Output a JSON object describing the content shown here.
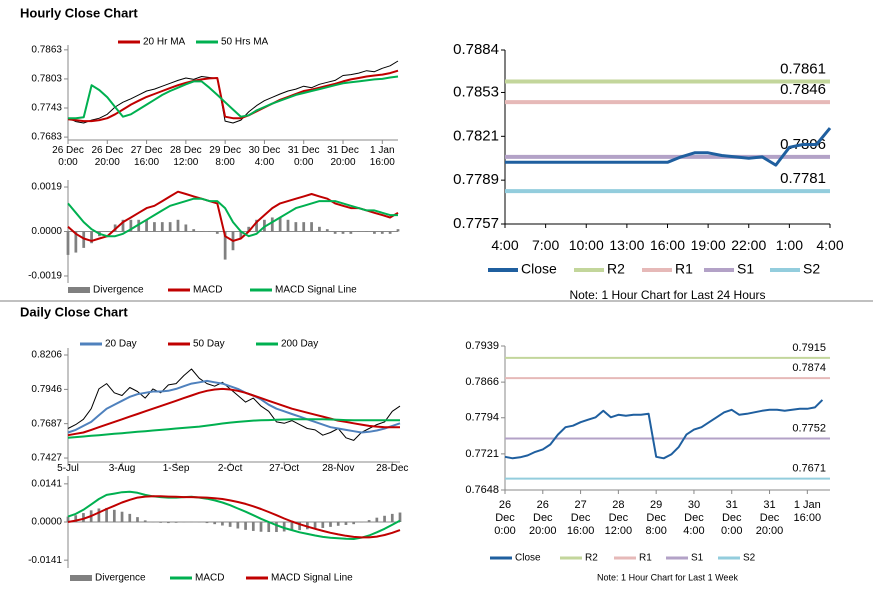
{
  "headings": [
    "Hourly Close Chart",
    "Daily Close Chart"
  ],
  "chart_data": [
    {
      "type": "line",
      "xlim": [
        0,
        42
      ],
      "xticks": [
        {
          "value": 0,
          "label": "26 Dec\n0:00"
        },
        {
          "value": 5,
          "label": "26 Dec\n20:00"
        },
        {
          "value": 10,
          "label": "27 Dec\n16:00"
        },
        {
          "value": 15,
          "label": "28 Dec\n12:00"
        },
        {
          "value": 20,
          "label": "29 Dec\n8:00"
        },
        {
          "value": 25,
          "label": "30 Dec\n4:00"
        },
        {
          "value": 30,
          "label": "31 Dec\n0:00"
        },
        {
          "value": 35,
          "label": "31 Dec\n20:00"
        },
        {
          "value": 40,
          "label": "1 Jan\n16:00"
        }
      ],
      "ylim": [
        0.7677,
        0.7873
      ],
      "yticks": [
        0.7683,
        0.7743,
        0.7803,
        0.7863
      ],
      "series": [
        {
          "color": "#000000",
          "values": [
            0.7722,
            0.7715,
            0.7712,
            0.7718,
            0.7722,
            0.773,
            0.7745,
            0.7755,
            0.7762,
            0.777,
            0.7778,
            0.7782,
            0.7788,
            0.7794,
            0.78,
            0.7805,
            0.7802,
            0.7808,
            0.7806,
            0.7804,
            0.7716,
            0.7712,
            0.7718,
            0.7735,
            0.7748,
            0.7758,
            0.7765,
            0.7772,
            0.7778,
            0.7782,
            0.7788,
            0.7785,
            0.7792,
            0.7796,
            0.78,
            0.781,
            0.7812,
            0.7815,
            0.782,
            0.7818,
            0.7825,
            0.783,
            0.784
          ]
        },
        {
          "name": "20 Hr MA",
          "color": "#c00000",
          "values": [
            0.772,
            0.7718,
            0.7716,
            0.7716,
            0.7718,
            0.7722,
            0.773,
            0.774,
            0.775,
            0.7758,
            0.7766,
            0.7772,
            0.7778,
            0.7784,
            0.779,
            0.7795,
            0.7799,
            0.7802,
            0.7804,
            0.7805,
            0.7725,
            0.7722,
            0.7722,
            0.7728,
            0.7736,
            0.7744,
            0.7752,
            0.776,
            0.7766,
            0.7772,
            0.7778,
            0.7781,
            0.7785,
            0.7789,
            0.7793,
            0.7798,
            0.7802,
            0.7805,
            0.7808,
            0.781,
            0.7812,
            0.7815,
            0.782
          ]
        },
        {
          "name": "50 Hrs MA",
          "color": "#00b050",
          "values": [
            0.7722,
            0.7722,
            0.7724,
            0.779,
            0.778,
            0.7765,
            0.7745,
            0.7725,
            0.773,
            0.774,
            0.775,
            0.776,
            0.777,
            0.7778,
            0.7785,
            0.7792,
            0.7798,
            0.7798,
            0.7785,
            0.777,
            0.7755,
            0.774,
            0.7725,
            0.7728,
            0.7738,
            0.7745,
            0.7752,
            0.7758,
            0.7764,
            0.777,
            0.7774,
            0.7778,
            0.7782,
            0.7786,
            0.779,
            0.7794,
            0.7796,
            0.7798,
            0.78,
            0.7802,
            0.7803,
            0.7806,
            0.7808
          ]
        }
      ]
    },
    {
      "type": "combo",
      "xlim": [
        0,
        42
      ],
      "ylim": [
        -0.0022,
        0.0022
      ],
      "yticks": [
        0.0019,
        {
          "value": 0,
          "label": "0.0000"
        },
        -0.0019
      ],
      "series": [
        {
          "name": "Divergence",
          "color": "#808080",
          "style": "bar",
          "values": [
            -0.001,
            -0.0009,
            -0.0007,
            -0.0005,
            -0.0002,
            0,
            0.0003,
            0.0005,
            0.0005,
            0.0005,
            0.0005,
            0.0004,
            0.0004,
            0.0004,
            0.0005,
            0.0003,
            0.0001,
            0,
            0,
            -0.0001,
            -0.0012,
            -0.0008,
            -0.0003,
            0.0002,
            0.0005,
            0.0005,
            0.0006,
            0.0006,
            0.0005,
            0.0004,
            0.0004,
            0.0004,
            0.0002,
            0.0001,
            -0.0001,
            -0.0001,
            -0.0001,
            0,
            0,
            -0.0001,
            -0.0001,
            -0.0001,
            0.0001
          ]
        },
        {
          "name": "MACD",
          "color": "#c00000",
          "values": [
            0.0002,
            -0.0001,
            -0.0003,
            -0.0004,
            -0.0003,
            -0.0002,
            0.0001,
            0.0004,
            0.0006,
            0.0008,
            0.001,
            0.0011,
            0.0013,
            0.0015,
            0.0017,
            0.0016,
            0.0015,
            0.0014,
            0.0013,
            0.0012,
            -0.0002,
            -0.0004,
            -0.0003,
            0,
            0.0004,
            0.0007,
            0.001,
            0.0012,
            0.0013,
            0.0014,
            0.0015,
            0.0016,
            0.0015,
            0.0014,
            0.0012,
            0.0011,
            0.001,
            0.001,
            0.0009,
            0.0008,
            0.0007,
            0.0006,
            0.0008
          ]
        },
        {
          "name": "MACD Signal Line",
          "color": "#00b050",
          "values": [
            0.0012,
            0.0008,
            0.0004,
            0.0001,
            -0.0001,
            -0.0002,
            -0.0002,
            -0.0001,
            0.0001,
            0.0003,
            0.0005,
            0.0007,
            0.0009,
            0.0011,
            0.0012,
            0.0013,
            0.0014,
            0.0014,
            0.0013,
            0.0013,
            0.001,
            0.0004,
            0,
            -0.0002,
            -0.0001,
            0.0002,
            0.0004,
            0.0006,
            0.0008,
            0.001,
            0.0011,
            0.0012,
            0.0013,
            0.0013,
            0.0013,
            0.0012,
            0.0011,
            0.001,
            0.0009,
            0.0009,
            0.0008,
            0.0007,
            0.0007
          ]
        }
      ]
    },
    {
      "type": "line",
      "xlim": [
        0,
        24
      ],
      "xticks": [
        {
          "value": 0,
          "label": "4:00"
        },
        {
          "value": 3,
          "label": "7:00"
        },
        {
          "value": 6,
          "label": "10:00"
        },
        {
          "value": 9,
          "label": "13:00"
        },
        {
          "value": 12,
          "label": "16:00"
        },
        {
          "value": 15,
          "label": "19:00"
        },
        {
          "value": 18,
          "label": "22:00"
        },
        {
          "value": 21,
          "label": "1:00"
        },
        {
          "value": 24,
          "label": "4:00"
        }
      ],
      "ylim": [
        0.7757,
        0.7884
      ],
      "yticks": [
        0.7884,
        0.7853,
        0.7821,
        0.7789,
        0.7757
      ],
      "series": [
        {
          "name": "Close",
          "color": "#1f5f9f",
          "values": [
            0.7802,
            0.7802,
            0.7802,
            0.7802,
            0.7802,
            0.7802,
            0.7802,
            0.7802,
            0.7802,
            0.7802,
            0.7802,
            0.7802,
            0.7802,
            0.7806,
            0.7809,
            0.7809,
            0.7807,
            0.7806,
            0.7805,
            0.7806,
            0.78,
            0.7813,
            0.7815,
            0.7815,
            0.7827
          ]
        }
      ],
      "levels": [
        {
          "name": "R2",
          "color": "#c3d69b",
          "value": 0.7861
        },
        {
          "name": "R1",
          "color": "#e6b9b8",
          "value": 0.7846
        },
        {
          "name": "S1",
          "color": "#b3a2c7",
          "value": 0.7806
        },
        {
          "name": "S2",
          "color": "#93cddd",
          "value": 0.7781
        }
      ],
      "note": "Note: 1 Hour Chart for Last 24 Hours"
    },
    {
      "type": "line",
      "xlim": [
        0,
        43
      ],
      "xticks": [
        {
          "value": 0,
          "label": "5-Jul"
        },
        {
          "value": 7,
          "label": "3-Aug"
        },
        {
          "value": 14,
          "label": "1-Sep"
        },
        {
          "value": 21,
          "label": "2-Oct"
        },
        {
          "value": 28,
          "label": "27-Oct"
        },
        {
          "value": 35,
          "label": "28-Nov"
        },
        {
          "value": 42,
          "label": "28-Dec"
        }
      ],
      "ylim": [
        0.7397,
        0.8259
      ],
      "yticks": [
        0.8206,
        0.7946,
        0.7687,
        0.7427
      ],
      "series": [
        {
          "color": "#000000",
          "values": [
            0.765,
            0.768,
            0.772,
            0.78,
            0.795,
            0.799,
            0.792,
            0.79,
            0.796,
            0.793,
            0.788,
            0.795,
            0.792,
            0.798,
            0.799,
            0.805,
            0.81,
            0.803,
            0.799,
            0.797,
            0.8,
            0.795,
            0.79,
            0.785,
            0.788,
            0.782,
            0.778,
            0.77,
            0.769,
            0.771,
            0.768,
            0.765,
            0.764,
            0.76,
            0.762,
            0.765,
            0.758,
            0.756,
            0.762,
            0.765,
            0.768,
            0.77,
            0.778,
            0.782
          ]
        },
        {
          "name": "20 Day",
          "color": "#4f81bd",
          "values": [
            0.762,
            0.764,
            0.767,
            0.77,
            0.775,
            0.78,
            0.783,
            0.786,
            0.789,
            0.791,
            0.792,
            0.793,
            0.793,
            0.7935,
            0.795,
            0.797,
            0.799,
            0.8,
            0.801,
            0.8,
            0.799,
            0.797,
            0.795,
            0.792,
            0.79,
            0.787,
            0.783,
            0.78,
            0.778,
            0.776,
            0.774,
            0.772,
            0.77,
            0.768,
            0.766,
            0.765,
            0.764,
            0.763,
            0.762,
            0.7625,
            0.7635,
            0.765,
            0.767,
            0.769
          ]
        },
        {
          "name": "50 Day",
          "color": "#c00000",
          "values": [
            0.76,
            0.761,
            0.762,
            0.764,
            0.766,
            0.768,
            0.77,
            0.772,
            0.774,
            0.776,
            0.778,
            0.78,
            0.782,
            0.784,
            0.786,
            0.788,
            0.79,
            0.792,
            0.7935,
            0.7945,
            0.795,
            0.7945,
            0.7935,
            0.792,
            0.79,
            0.788,
            0.786,
            0.784,
            0.782,
            0.78,
            0.7785,
            0.777,
            0.7755,
            0.774,
            0.7725,
            0.771,
            0.77,
            0.769,
            0.768,
            0.767,
            0.7665,
            0.766,
            0.766,
            0.766
          ]
        },
        {
          "name": "200 Day",
          "color": "#00b050",
          "values": [
            0.758,
            0.7585,
            0.759,
            0.7595,
            0.76,
            0.7605,
            0.761,
            0.7615,
            0.762,
            0.7625,
            0.763,
            0.7635,
            0.764,
            0.7645,
            0.765,
            0.7655,
            0.766,
            0.7665,
            0.7672,
            0.768,
            0.7688,
            0.7695,
            0.77,
            0.7705,
            0.771,
            0.7712,
            0.7714,
            0.7716,
            0.7718,
            0.772,
            0.772,
            0.772,
            0.772,
            0.772,
            0.7718,
            0.7716,
            0.7714,
            0.7712,
            0.7712,
            0.7712,
            0.7712,
            0.7712,
            0.7712,
            0.7712
          ]
        }
      ]
    },
    {
      "type": "combo",
      "xlim": [
        0,
        43
      ],
      "ylim": [
        -0.017,
        0.017
      ],
      "yticks": [
        0.0141,
        {
          "value": 0,
          "label": "0.0000"
        },
        -0.0141
      ],
      "series": [
        {
          "name": "Divergence",
          "color": "#808080",
          "style": "bar",
          "values": [
            0.002,
            0.0025,
            0.0033,
            0.0043,
            0.005,
            0.0052,
            0.0045,
            0.0038,
            0.003,
            0.0018,
            0.0006,
            0,
            -0.0003,
            -0.0004,
            -0.0003,
            0,
            0.0001,
            -0.0001,
            -0.0004,
            -0.0008,
            -0.0013,
            -0.0018,
            -0.0024,
            -0.0029,
            -0.0033,
            -0.0036,
            -0.0037,
            -0.0037,
            -0.0035,
            -0.0032,
            -0.003,
            -0.0027,
            -0.0025,
            -0.0022,
            -0.0018,
            -0.0014,
            -0.0011,
            -0.0008,
            -0.0001,
            0.0007,
            0.0016,
            0.0023,
            0.003,
            0.0035
          ]
        },
        {
          "name": "MACD",
          "color": "#00b050",
          "values": [
            0.002,
            0.003,
            0.0045,
            0.0065,
            0.0085,
            0.01,
            0.0105,
            0.011,
            0.0112,
            0.0108,
            0.01,
            0.0095,
            0.0092,
            0.009,
            0.009,
            0.0092,
            0.0093,
            0.009,
            0.0086,
            0.008,
            0.0072,
            0.0062,
            0.005,
            0.0038,
            0.0025,
            0.0012,
            0,
            -0.0012,
            -0.0022,
            -0.003,
            -0.0038,
            -0.0044,
            -0.005,
            -0.0055,
            -0.0058,
            -0.006,
            -0.0062,
            -0.0063,
            -0.0058,
            -0.005,
            -0.0038,
            -0.0025,
            -0.001,
            0.0005
          ]
        },
        {
          "name": "MACD Signal Line",
          "color": "#c00000",
          "values": [
            0,
            0.0005,
            0.0012,
            0.0022,
            0.0035,
            0.0048,
            0.006,
            0.0072,
            0.0082,
            0.009,
            0.0094,
            0.0095,
            0.0095,
            0.0094,
            0.0093,
            0.0092,
            0.0092,
            0.0091,
            0.009,
            0.0088,
            0.0085,
            0.008,
            0.0074,
            0.0067,
            0.0058,
            0.0048,
            0.0037,
            0.0025,
            0.0013,
            0.0002,
            -0.0008,
            -0.0017,
            -0.0025,
            -0.0033,
            -0.004,
            -0.0046,
            -0.0051,
            -0.0055,
            -0.0057,
            -0.0057,
            -0.0054,
            -0.0048,
            -0.004,
            -0.003
          ]
        }
      ]
    },
    {
      "type": "line",
      "xlim": [
        0,
        43
      ],
      "xticks": [
        {
          "value": 0,
          "label": "26\nDec\n0:00"
        },
        {
          "value": 5,
          "label": "26\nDec\n20:00"
        },
        {
          "value": 10,
          "label": "27\nDec\n16:00"
        },
        {
          "value": 15,
          "label": "28\nDec\n12:00"
        },
        {
          "value": 20,
          "label": "29\nDec\n8:00"
        },
        {
          "value": 25,
          "label": "30\nDec\n4:00"
        },
        {
          "value": 30,
          "label": "31\nDec\n0:00"
        },
        {
          "value": 35,
          "label": "31\nDec\n20:00"
        },
        {
          "value": 40,
          "label": "1 Jan\n16:00"
        }
      ],
      "ylim": [
        0.7648,
        0.7939
      ],
      "yticks": [
        0.7939,
        0.7866,
        0.7794,
        0.7721,
        0.7648
      ],
      "series": [
        {
          "name": "Close",
          "color": "#1f5f9f",
          "values": [
            0.7715,
            0.7712,
            0.7714,
            0.7718,
            0.7725,
            0.773,
            0.774,
            0.776,
            0.7775,
            0.7778,
            0.7785,
            0.779,
            0.7795,
            0.7808,
            0.7795,
            0.78,
            0.7798,
            0.78,
            0.78,
            0.7802,
            0.7715,
            0.7712,
            0.772,
            0.7735,
            0.776,
            0.777,
            0.7775,
            0.7785,
            0.7795,
            0.7805,
            0.781,
            0.78,
            0.7802,
            0.7805,
            0.7808,
            0.781,
            0.781,
            0.7808,
            0.781,
            0.7812,
            0.7812,
            0.7815,
            0.783
          ]
        }
      ],
      "levels": [
        {
          "name": "R2",
          "color": "#c3d69b",
          "value": 0.7915
        },
        {
          "name": "R1",
          "color": "#e6b9b8",
          "value": 0.7874
        },
        {
          "name": "S1",
          "color": "#b3a2c7",
          "value": 0.7752
        },
        {
          "name": "S2",
          "color": "#93cddd",
          "value": 0.7671
        }
      ],
      "note": "Note: 1 Hour Chart for Last 1 Week"
    }
  ]
}
